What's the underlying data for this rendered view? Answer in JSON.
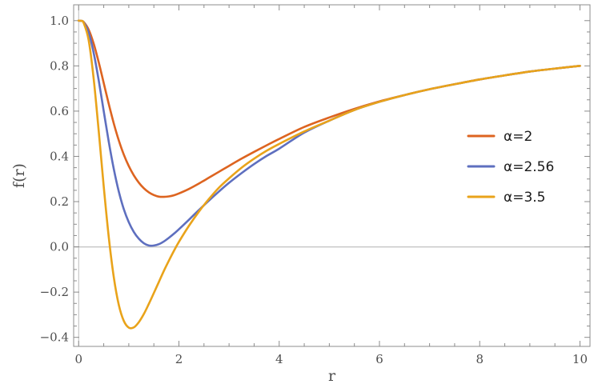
{
  "chart_data": {
    "type": "line",
    "title": "",
    "xlabel": "r",
    "ylabel": "f(r)",
    "xlim": [
      -0.1,
      10.2
    ],
    "ylim": [
      -0.44,
      1.07
    ],
    "xticks": [
      0,
      2,
      4,
      6,
      8,
      10
    ],
    "xtick_labels": [
      "0",
      "2",
      "4",
      "6",
      "8",
      "10"
    ],
    "yticks": [
      -0.4,
      -0.2,
      0.0,
      0.2,
      0.4,
      0.6,
      0.8,
      1.0
    ],
    "ytick_labels": [
      "−0.4",
      "−0.2",
      "0.0",
      "0.2",
      "0.4",
      "0.6",
      "0.8",
      "1.0"
    ],
    "reference_line": {
      "y": 0,
      "color": "#c8c8c8"
    },
    "x": [
      0,
      0.05,
      0.1,
      0.2,
      0.3,
      0.4,
      0.5,
      0.6,
      0.7,
      0.8,
      0.9,
      1.0,
      1.1,
      1.2,
      1.3,
      1.4,
      1.5,
      1.6,
      1.7,
      1.8,
      1.9,
      2.0,
      2.2,
      2.4,
      2.6,
      2.8,
      3.0,
      3.25,
      3.5,
      3.75,
      4.0,
      4.5,
      5.0,
      5.5,
      6.0,
      6.5,
      7.0,
      7.5,
      8.0,
      8.5,
      9.0,
      9.5,
      10.0
    ],
    "series": [
      {
        "name": "α=2",
        "color": "#dd6420",
        "values": [
          1.0,
          0.999,
          0.994,
          0.96,
          0.898,
          0.816,
          0.724,
          0.632,
          0.546,
          0.471,
          0.408,
          0.357,
          0.316,
          0.284,
          0.259,
          0.241,
          0.229,
          0.222,
          0.221,
          0.223,
          0.228,
          0.236,
          0.256,
          0.28,
          0.306,
          0.332,
          0.358,
          0.39,
          0.42,
          0.449,
          0.477,
          0.53,
          0.572,
          0.61,
          0.643,
          0.671,
          0.697,
          0.719,
          0.74,
          0.758,
          0.775,
          0.788,
          0.8
        ]
      },
      {
        "name": "α=2.56",
        "color": "#5e6fbf",
        "values": [
          1.0,
          0.999,
          0.993,
          0.947,
          0.857,
          0.736,
          0.6,
          0.465,
          0.345,
          0.245,
          0.167,
          0.109,
          0.066,
          0.036,
          0.016,
          0.006,
          0.006,
          0.012,
          0.024,
          0.04,
          0.058,
          0.078,
          0.12,
          0.163,
          0.205,
          0.245,
          0.283,
          0.326,
          0.366,
          0.402,
          0.434,
          0.505,
          0.558,
          0.605,
          0.641,
          0.671,
          0.697,
          0.719,
          0.74,
          0.758,
          0.775,
          0.788,
          0.8
        ]
      },
      {
        "name": "α=3.5",
        "color": "#e9a31a",
        "values": [
          1.0,
          0.999,
          0.99,
          0.913,
          0.742,
          0.512,
          0.267,
          0.044,
          -0.133,
          -0.256,
          -0.327,
          -0.357,
          -0.356,
          -0.333,
          -0.297,
          -0.252,
          -0.204,
          -0.155,
          -0.106,
          -0.061,
          -0.018,
          0.022,
          0.093,
          0.156,
          0.212,
          0.262,
          0.303,
          0.35,
          0.39,
          0.425,
          0.455,
          0.51,
          0.558,
          0.605,
          0.641,
          0.671,
          0.697,
          0.719,
          0.74,
          0.758,
          0.775,
          0.788,
          0.8
        ]
      }
    ],
    "legend": {
      "position": "right",
      "entries": [
        "α=2",
        "α=2.56",
        "α=3.5"
      ]
    },
    "grid": false
  }
}
